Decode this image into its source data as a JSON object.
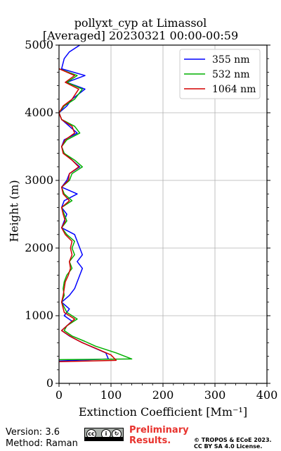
{
  "chart_data": {
    "type": "line",
    "title": "pollyxt_cyp at Limassol",
    "subtitle": "[Averaged] 20230321 00:00-00:59",
    "xlabel": "Extinction Coefficient [Mm⁻¹]",
    "ylabel": "Height (m)",
    "xlim": [
      0,
      400
    ],
    "ylim": [
      0,
      5000
    ],
    "xticks": [
      "0",
      "100",
      "200",
      "300",
      "400"
    ],
    "yticks": [
      "0",
      "1000",
      "2000",
      "3000",
      "4000",
      "5000"
    ],
    "grid": true,
    "legend_position": "top-right",
    "series": [
      {
        "name": "355 nm",
        "color": "#0000ff",
        "points": [
          [
            0,
            330
          ],
          [
            95,
            360
          ],
          [
            90,
            450
          ],
          [
            60,
            550
          ],
          [
            40,
            620
          ],
          [
            20,
            700
          ],
          [
            5,
            780
          ],
          [
            15,
            850
          ],
          [
            25,
            920
          ],
          [
            10,
            1000
          ],
          [
            20,
            1100
          ],
          [
            5,
            1200
          ],
          [
            20,
            1300
          ],
          [
            30,
            1400
          ],
          [
            35,
            1500
          ],
          [
            40,
            1600
          ],
          [
            45,
            1700
          ],
          [
            35,
            1800
          ],
          [
            45,
            1900
          ],
          [
            40,
            2000
          ],
          [
            35,
            2100
          ],
          [
            30,
            2200
          ],
          [
            5,
            2300
          ],
          [
            10,
            2400
          ],
          [
            15,
            2500
          ],
          [
            5,
            2600
          ],
          [
            10,
            2700
          ],
          [
            35,
            2800
          ],
          [
            5,
            2900
          ],
          [
            15,
            3000
          ],
          [
            20,
            3100
          ],
          [
            40,
            3200
          ],
          [
            25,
            3300
          ],
          [
            10,
            3400
          ],
          [
            5,
            3500
          ],
          [
            10,
            3600
          ],
          [
            35,
            3700
          ],
          [
            20,
            3800
          ],
          [
            5,
            3900
          ],
          [
            0,
            4000
          ],
          [
            15,
            4100
          ],
          [
            25,
            4200
          ],
          [
            50,
            4350
          ],
          [
            15,
            4450
          ],
          [
            50,
            4550
          ],
          [
            5,
            4650
          ],
          [
            10,
            4800
          ],
          [
            20,
            4900
          ],
          [
            40,
            5000
          ]
        ]
      },
      {
        "name": "532 nm",
        "color": "#00b000",
        "points": [
          [
            0,
            350
          ],
          [
            140,
            360
          ],
          [
            110,
            450
          ],
          [
            70,
            550
          ],
          [
            50,
            620
          ],
          [
            25,
            700
          ],
          [
            10,
            780
          ],
          [
            15,
            850
          ],
          [
            35,
            950
          ],
          [
            15,
            1050
          ],
          [
            5,
            1200
          ],
          [
            10,
            1300
          ],
          [
            8,
            1400
          ],
          [
            10,
            1500
          ],
          [
            15,
            1600
          ],
          [
            25,
            1700
          ],
          [
            20,
            1800
          ],
          [
            30,
            1900
          ],
          [
            25,
            2000
          ],
          [
            30,
            2100
          ],
          [
            15,
            2200
          ],
          [
            5,
            2300
          ],
          [
            15,
            2400
          ],
          [
            10,
            2500
          ],
          [
            5,
            2600
          ],
          [
            25,
            2700
          ],
          [
            10,
            2800
          ],
          [
            5,
            2900
          ],
          [
            20,
            3000
          ],
          [
            25,
            3100
          ],
          [
            45,
            3200
          ],
          [
            30,
            3300
          ],
          [
            10,
            3400
          ],
          [
            5,
            3500
          ],
          [
            15,
            3600
          ],
          [
            40,
            3700
          ],
          [
            30,
            3800
          ],
          [
            5,
            3900
          ],
          [
            0,
            4000
          ],
          [
            10,
            4100
          ],
          [
            30,
            4200
          ],
          [
            45,
            4350
          ],
          [
            15,
            4450
          ],
          [
            35,
            4550
          ],
          [
            0,
            4650
          ]
        ]
      },
      {
        "name": "1064 nm",
        "color": "#d40000",
        "points": [
          [
            0,
            320
          ],
          [
            110,
            340
          ],
          [
            100,
            420
          ],
          [
            70,
            520
          ],
          [
            45,
            600
          ],
          [
            25,
            680
          ],
          [
            5,
            780
          ],
          [
            15,
            850
          ],
          [
            30,
            950
          ],
          [
            10,
            1050
          ],
          [
            5,
            1200
          ],
          [
            8,
            1300
          ],
          [
            10,
            1400
          ],
          [
            12,
            1500
          ],
          [
            18,
            1600
          ],
          [
            22,
            1700
          ],
          [
            20,
            1800
          ],
          [
            25,
            1900
          ],
          [
            22,
            2000
          ],
          [
            25,
            2100
          ],
          [
            12,
            2200
          ],
          [
            5,
            2300
          ],
          [
            12,
            2400
          ],
          [
            8,
            2500
          ],
          [
            5,
            2600
          ],
          [
            20,
            2700
          ],
          [
            8,
            2800
          ],
          [
            5,
            2900
          ],
          [
            18,
            3000
          ],
          [
            20,
            3100
          ],
          [
            38,
            3200
          ],
          [
            25,
            3300
          ],
          [
            8,
            3400
          ],
          [
            5,
            3500
          ],
          [
            12,
            3600
          ],
          [
            30,
            3700
          ],
          [
            25,
            3800
          ],
          [
            5,
            3900
          ],
          [
            0,
            4000
          ],
          [
            8,
            4100
          ],
          [
            25,
            4200
          ],
          [
            38,
            4350
          ],
          [
            12,
            4450
          ],
          [
            30,
            4550
          ],
          [
            0,
            4650
          ]
        ]
      }
    ]
  },
  "footer": {
    "version": "Version: 3.6",
    "method": "Method: Raman",
    "preliminary_line1": "Preliminary",
    "preliminary_line2": "Results.",
    "copyright_line1": "© TROPOS & ECoE 2023.",
    "copyright_line2": "CC BY SA 4.0 License.",
    "license_badge_text": "cc BY SA"
  }
}
